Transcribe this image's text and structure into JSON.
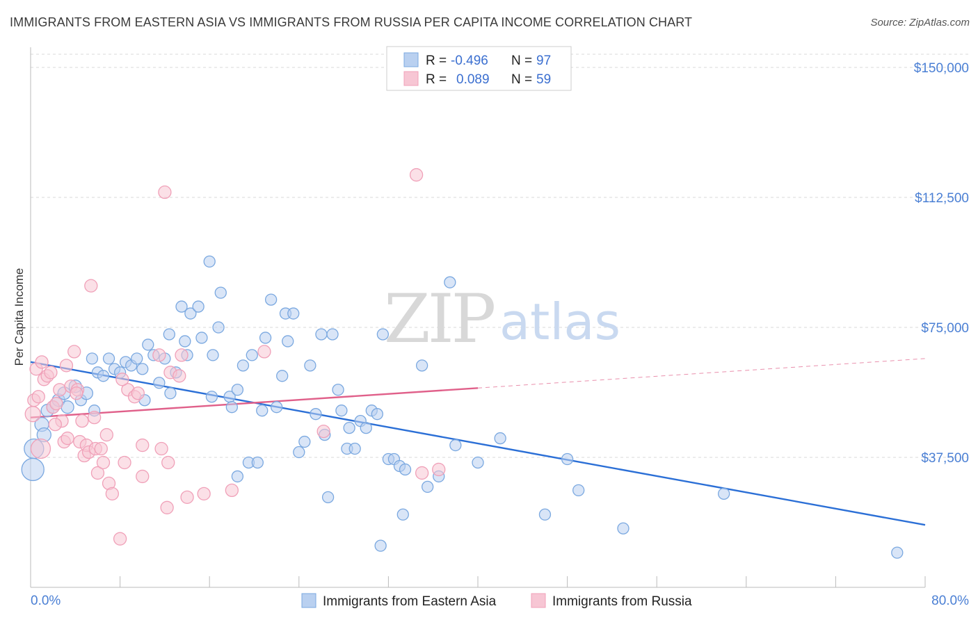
{
  "title": "IMMIGRANTS FROM EASTERN ASIA VS IMMIGRANTS FROM RUSSIA PER CAPITA INCOME CORRELATION CHART",
  "source": "Source: ZipAtlas.com",
  "watermark": {
    "zip": "ZIP",
    "atlas": "atlas"
  },
  "legend_box": {
    "row1": {
      "r_label": "R =",
      "r_value": "-0.496",
      "n_label": "N =",
      "n_value": "97"
    },
    "row2": {
      "r_label": "R =",
      "r_value": "0.089",
      "n_label": "N =",
      "n_value": "59"
    }
  },
  "colors": {
    "blue": "#7aa8e0",
    "blue_fill": "#b9d0f0",
    "blue_line": "#2b6fd6",
    "pink": "#f0a0b8",
    "pink_fill": "#f7c6d4",
    "pink_line": "#e0608a",
    "grid": "#d8d8d8",
    "axis_text": "#4a7fd4"
  },
  "chart_data": {
    "type": "scatter",
    "ylabel": "Per Capita Income",
    "xlim": [
      0,
      80
    ],
    "ylim": [
      0,
      150000
    ],
    "x_tick_labels": {
      "left": "0.0%",
      "right": "80.0%"
    },
    "y_ticks": [
      {
        "value": 37500,
        "label": "$37,500"
      },
      {
        "value": 75000,
        "label": "$75,000"
      },
      {
        "value": 112500,
        "label": "$112,500"
      },
      {
        "value": 150000,
        "label": "$150,000"
      }
    ],
    "grid": true,
    "legend_position": "bottom",
    "series": [
      {
        "name": "Immigrants from Eastern Asia",
        "color": "blue",
        "trend": {
          "x0": 0,
          "y0": 65000,
          "x1": 80,
          "y1": 18000,
          "solid_to": 80
        },
        "points": [
          [
            0.2,
            34000,
            16
          ],
          [
            0.3,
            40000,
            14
          ],
          [
            1,
            47000,
            10
          ],
          [
            1.2,
            44000,
            10
          ],
          [
            1.5,
            51000,
            9
          ],
          [
            2,
            52000,
            9
          ],
          [
            2.5,
            54000,
            9
          ],
          [
            3,
            56000,
            9
          ],
          [
            3.3,
            52000,
            9
          ],
          [
            4,
            58000,
            9
          ],
          [
            4.5,
            54000,
            8
          ],
          [
            5,
            56000,
            9
          ],
          [
            5.5,
            66000,
            8
          ],
          [
            5.7,
            51000,
            8
          ],
          [
            6,
            62000,
            8
          ],
          [
            6.5,
            61000,
            8
          ],
          [
            7,
            66000,
            8
          ],
          [
            7.5,
            63000,
            8
          ],
          [
            8,
            62000,
            8
          ],
          [
            8.5,
            65000,
            8
          ],
          [
            9,
            64000,
            8
          ],
          [
            9.5,
            66000,
            8
          ],
          [
            10,
            63000,
            8
          ],
          [
            10.2,
            54000,
            8
          ],
          [
            10.5,
            70000,
            8
          ],
          [
            11,
            67000,
            8
          ],
          [
            11.5,
            59000,
            8
          ],
          [
            12,
            66000,
            8
          ],
          [
            12.5,
            56000,
            8
          ],
          [
            12.4,
            73000,
            8
          ],
          [
            13,
            62000,
            8
          ],
          [
            13.5,
            81000,
            8
          ],
          [
            13.8,
            71000,
            8
          ],
          [
            14,
            67000,
            8
          ],
          [
            14.3,
            79000,
            8
          ],
          [
            15,
            81000,
            8
          ],
          [
            15.3,
            72000,
            8
          ],
          [
            16,
            94000,
            8
          ],
          [
            16.3,
            67000,
            8
          ],
          [
            16.2,
            55000,
            8
          ],
          [
            16.8,
            75000,
            8
          ],
          [
            17,
            85000,
            8
          ],
          [
            17.8,
            55000,
            8
          ],
          [
            18,
            52000,
            8
          ],
          [
            18.5,
            57000,
            8
          ],
          [
            18.5,
            32000,
            8
          ],
          [
            19,
            64000,
            8
          ],
          [
            19.5,
            36000,
            8
          ],
          [
            19.8,
            67000,
            8
          ],
          [
            20.3,
            36000,
            8
          ],
          [
            20.7,
            51000,
            8
          ],
          [
            21,
            72000,
            8
          ],
          [
            21.5,
            83000,
            8
          ],
          [
            22,
            52000,
            8
          ],
          [
            22.5,
            61000,
            8
          ],
          [
            22.8,
            79000,
            8
          ],
          [
            23,
            71000,
            8
          ],
          [
            23.5,
            79000,
            8
          ],
          [
            24,
            39000,
            8
          ],
          [
            24.5,
            42000,
            8
          ],
          [
            25,
            64000,
            8
          ],
          [
            25.5,
            50000,
            8
          ],
          [
            26,
            73000,
            8
          ],
          [
            26.3,
            44000,
            8
          ],
          [
            26.6,
            26000,
            8
          ],
          [
            27,
            73000,
            8
          ],
          [
            27.5,
            57000,
            8
          ],
          [
            27.8,
            51000,
            8
          ],
          [
            28.3,
            40000,
            8
          ],
          [
            28.5,
            46000,
            8
          ],
          [
            29,
            40000,
            8
          ],
          [
            29.5,
            48000,
            8
          ],
          [
            30,
            46000,
            8
          ],
          [
            30.5,
            51000,
            8
          ],
          [
            31,
            50000,
            8
          ],
          [
            31.3,
            12000,
            8
          ],
          [
            31.5,
            73000,
            8
          ],
          [
            32,
            37000,
            8
          ],
          [
            32.5,
            37000,
            8
          ],
          [
            33,
            35000,
            8
          ],
          [
            33.3,
            21000,
            8
          ],
          [
            33.5,
            34000,
            8
          ],
          [
            35,
            64000,
            8
          ],
          [
            35.5,
            29000,
            8
          ],
          [
            36.5,
            32000,
            8
          ],
          [
            37.5,
            88000,
            8
          ],
          [
            38,
            41000,
            8
          ],
          [
            40,
            36000,
            8
          ],
          [
            42,
            43000,
            8
          ],
          [
            46,
            21000,
            8
          ],
          [
            48,
            37000,
            8
          ],
          [
            49,
            28000,
            8
          ],
          [
            53,
            17000,
            8
          ],
          [
            62,
            27000,
            8
          ],
          [
            77.5,
            10000,
            8
          ]
        ]
      },
      {
        "name": "Immigrants from Russia",
        "color": "pink",
        "trend": {
          "x0": 0,
          "y0": 49000,
          "x1": 80,
          "y1": 66000,
          "solid_to": 40
        },
        "points": [
          [
            0.2,
            50000,
            11
          ],
          [
            0.3,
            54000,
            9
          ],
          [
            0.5,
            63000,
            9
          ],
          [
            0.7,
            55000,
            9
          ],
          [
            1,
            65000,
            9
          ],
          [
            1.2,
            60000,
            9
          ],
          [
            1.5,
            61000,
            9
          ],
          [
            1.8,
            62000,
            9
          ],
          [
            2,
            52000,
            9
          ],
          [
            2.3,
            53000,
            9
          ],
          [
            2.6,
            57000,
            9
          ],
          [
            2.8,
            48000,
            9
          ],
          [
            3,
            42000,
            9
          ],
          [
            3.2,
            64000,
            9
          ],
          [
            3.3,
            43000,
            9
          ],
          [
            3.6,
            58000,
            9
          ],
          [
            3.9,
            68000,
            9
          ],
          [
            4.2,
            57000,
            9
          ],
          [
            4.4,
            42000,
            9
          ],
          [
            4.6,
            48000,
            9
          ],
          [
            4.8,
            38000,
            9
          ],
          [
            5,
            41000,
            9
          ],
          [
            5.2,
            39000,
            9
          ],
          [
            5.4,
            87000,
            9
          ],
          [
            5.7,
            49000,
            9
          ],
          [
            5.8,
            40000,
            9
          ],
          [
            6,
            33000,
            9
          ],
          [
            6.3,
            40000,
            9
          ],
          [
            6.5,
            36000,
            9
          ],
          [
            6.8,
            44000,
            9
          ],
          [
            7,
            30000,
            9
          ],
          [
            7.3,
            27000,
            9
          ],
          [
            8,
            14000,
            9
          ],
          [
            8.4,
            36000,
            9
          ],
          [
            8.7,
            57000,
            9
          ],
          [
            9.3,
            55000,
            9
          ],
          [
            9.6,
            56000,
            9
          ],
          [
            10,
            32000,
            9
          ],
          [
            10,
            41000,
            9
          ],
          [
            11.5,
            67000,
            9
          ],
          [
            11.7,
            40000,
            9
          ],
          [
            12,
            114000,
            9
          ],
          [
            12.2,
            23000,
            9
          ],
          [
            12.3,
            36000,
            9
          ],
          [
            12.5,
            62000,
            9
          ],
          [
            13.3,
            61000,
            9
          ],
          [
            13.5,
            67000,
            9
          ],
          [
            14,
            26000,
            9
          ],
          [
            15.5,
            27000,
            9
          ],
          [
            18,
            28000,
            9
          ],
          [
            20.9,
            68000,
            9
          ],
          [
            26.2,
            45000,
            9
          ],
          [
            34.5,
            119000,
            9
          ],
          [
            35,
            33000,
            9
          ],
          [
            36.5,
            34000,
            9
          ],
          [
            0.9,
            40000,
            14
          ],
          [
            2.2,
            47000,
            9
          ],
          [
            4.1,
            56000,
            9
          ],
          [
            8.2,
            60000,
            9
          ]
        ]
      }
    ]
  },
  "bottom_legend": {
    "item1": "Immigrants from Eastern Asia",
    "item2": "Immigrants from Russia"
  }
}
